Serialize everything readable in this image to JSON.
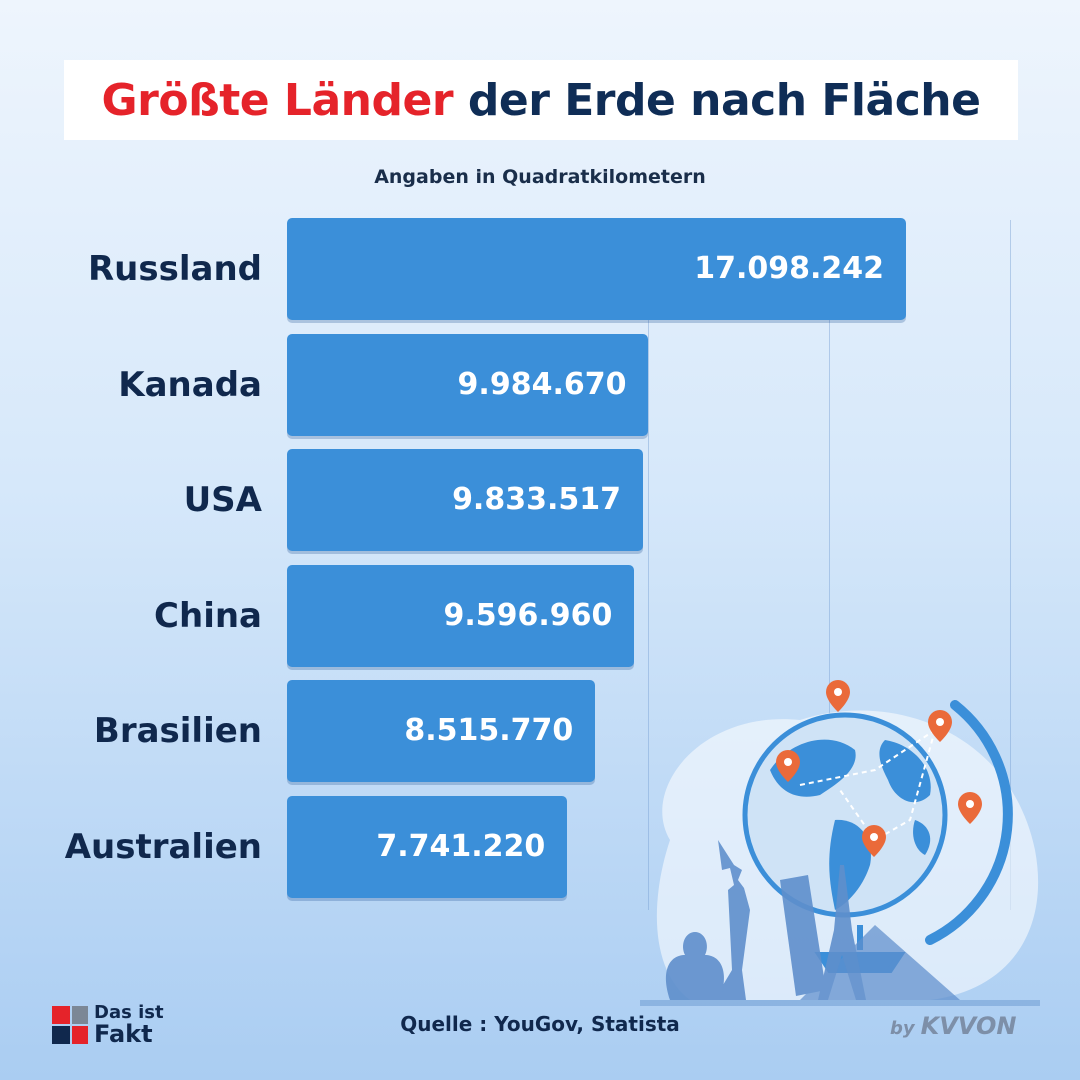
{
  "title": {
    "part_red": "Größte Länder",
    "part_dark": "der Erde nach Fläche"
  },
  "subtitle": "Angaben in Quadratkilometern",
  "chart_data": {
    "type": "bar",
    "orientation": "horizontal",
    "categories": [
      "Russland",
      "Kanada",
      "USA",
      "China",
      "Brasilien",
      "Australien"
    ],
    "values": [
      17098242,
      9984670,
      9833517,
      9596960,
      8515770,
      7741220
    ],
    "value_labels": [
      "17.098.242",
      "9.984.670",
      "9.833.517",
      "9.596.960",
      "8.515.770",
      "7.741.220"
    ],
    "title": "Größte Länder der Erde nach Fläche",
    "subtitle": "Angaben in Quadratkilometern",
    "grid": true,
    "bar_color": "#3b8fd9"
  },
  "source": "Quelle : YouGov, Statista",
  "logo": {
    "line1": "Das ist",
    "line2": "Fakt"
  },
  "brand": {
    "by": "by",
    "name": "KVVON"
  },
  "colors": {
    "accent_red": "#e5232a",
    "navy": "#10284d",
    "bar": "#3b8fd9",
    "pin": "#ea6a3a"
  },
  "illustration_icons": [
    "globe-icon",
    "location-pin-icon",
    "statue-of-liberty-icon",
    "leaning-tower-icon",
    "eiffel-tower-icon",
    "pyramid-icon",
    "buddha-statue-icon"
  ]
}
